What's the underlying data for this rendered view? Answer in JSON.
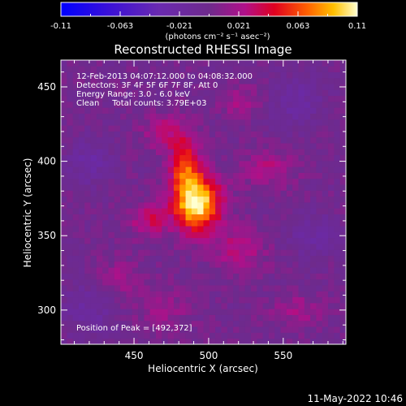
{
  "chart_data": {
    "type": "heatmap",
    "title": "Reconstructed RHESSI Image",
    "xlabel": "Heliocentric X (arcsec)",
    "ylabel": "Heliocentric Y (arcsec)",
    "xlim": [
      401,
      592
    ],
    "ylim": [
      277,
      468
    ],
    "xticks": [
      450,
      500,
      550
    ],
    "yticks": [
      300,
      350,
      400,
      450
    ],
    "colorbar": {
      "ticks": [
        "-0.11",
        "-0.063",
        "-0.021",
        "0.021",
        "0.063",
        "0.11"
      ],
      "range": [
        -0.11,
        0.11
      ],
      "unit_label": "(photons cm⁻² s⁻¹ asec⁻²)"
    },
    "annotations": [
      "12-Feb-2013 04:07:12.000 to 04:08:32.000",
      "Detectors: 3F 4F 5F 6F 7F 8F, Att 0",
      "Energy Range: 3.0 - 6.0 keV",
      "Clean     Total counts: 3.79E+03"
    ],
    "peak_label": "Position of Peak = [492,372]",
    "peak": {
      "x": 492,
      "y": 372,
      "value": 0.11
    },
    "sources": [
      {
        "x": 492,
        "y": 372,
        "sx": 11,
        "sy": 13,
        "amp": 0.11
      },
      {
        "x": 484,
        "y": 398,
        "sx": 7,
        "sy": 13,
        "amp": 0.06
      },
      {
        "x": 460,
        "y": 360,
        "sx": 9,
        "sy": 8,
        "amp": 0.035
      },
      {
        "x": 520,
        "y": 340,
        "sx": 12,
        "sy": 10,
        "amp": 0.03
      },
      {
        "x": 470,
        "y": 420,
        "sx": 10,
        "sy": 8,
        "amp": 0.03
      },
      {
        "x": 540,
        "y": 395,
        "sx": 13,
        "sy": 9,
        "amp": 0.025
      },
      {
        "x": 440,
        "y": 320,
        "sx": 10,
        "sy": 10,
        "amp": 0.02
      },
      {
        "x": 520,
        "y": 440,
        "sx": 10,
        "sy": 8,
        "amp": 0.02
      },
      {
        "x": 560,
        "y": 300,
        "sx": 12,
        "sy": 8,
        "amp": 0.02
      },
      {
        "x": 470,
        "y": 300,
        "sx": 12,
        "sy": 10,
        "amp": 0.018
      },
      {
        "x": 420,
        "y": 400,
        "sx": 10,
        "sy": 10,
        "amp": -0.025
      },
      {
        "x": 560,
        "y": 440,
        "sx": 12,
        "sy": 12,
        "amp": -0.02
      },
      {
        "x": 570,
        "y": 350,
        "sx": 10,
        "sy": 10,
        "amp": -0.02
      },
      {
        "x": 420,
        "y": 300,
        "sx": 12,
        "sy": 12,
        "amp": -0.02
      }
    ]
  },
  "footer": {
    "timestamp": "11-May-2022 10:46"
  }
}
